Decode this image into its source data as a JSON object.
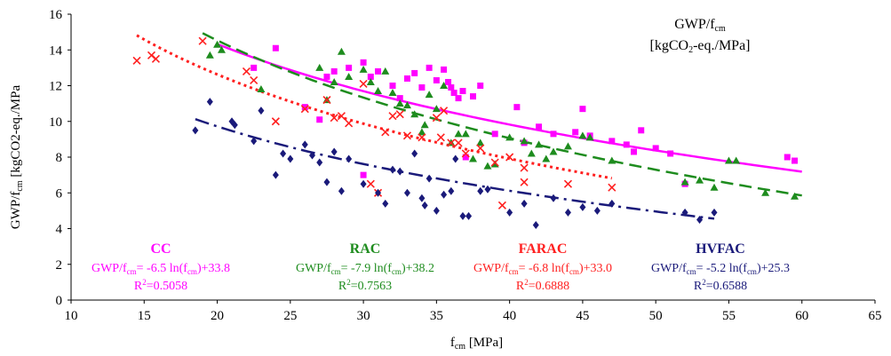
{
  "chart_data": {
    "type": "scatter",
    "title_lines": [
      "GWP/f",
      "[kgCO2-eq./MPa]"
    ],
    "title_parts": {
      "main": "GWP/f",
      "main_sub": "cm",
      "unit_a": "[kgCO",
      "unit_sub": "2",
      "unit_b": "-eq./MPa]"
    },
    "xlabel": {
      "main": "f",
      "sub": "cm",
      "unit": " [MPa]"
    },
    "ylabel": {
      "main": "GWP/f",
      "sub": "cm",
      "unit": " [kgCO2-eq./MPa"
    },
    "xlim": [
      10,
      65
    ],
    "ylim": [
      0,
      16
    ],
    "xticks": [
      "10",
      "15",
      "20",
      "25",
      "30",
      "35",
      "40",
      "45",
      "50",
      "55",
      "60",
      "65"
    ],
    "yticks": [
      "0",
      "2",
      "4",
      "6",
      "8",
      "10",
      "12",
      "14",
      "16"
    ],
    "series": [
      {
        "name": "CC",
        "color": "#ff00ff",
        "marker": "square",
        "eq_prefix": "GWP/f",
        "eq_sub": "cm",
        "eq_mid": "= -6.5 ln(f",
        "eq_sub2": "cm",
        "eq_end": ")+33.8",
        "r2": "=0.5058",
        "fit": {
          "a": -6.5,
          "b": 33.8,
          "xrange": [
            20,
            60
          ],
          "dash": "solid"
        },
        "points": [
          [
            22.5,
            13.0
          ],
          [
            24,
            14.1
          ],
          [
            26,
            10.8
          ],
          [
            27,
            10.1
          ],
          [
            27.5,
            12.5
          ],
          [
            28,
            12.8
          ],
          [
            29,
            13.0
          ],
          [
            30,
            13.3
          ],
          [
            30.5,
            12.5
          ],
          [
            31,
            12.8
          ],
          [
            32,
            12.0
          ],
          [
            32.5,
            11.3
          ],
          [
            33,
            12.4
          ],
          [
            33.5,
            12.7
          ],
          [
            34,
            11.9
          ],
          [
            34.5,
            13.0
          ],
          [
            35,
            12.3
          ],
          [
            35.5,
            12.9
          ],
          [
            35.8,
            12.2
          ],
          [
            36,
            11.9
          ],
          [
            36.2,
            11.6
          ],
          [
            36.5,
            11.3
          ],
          [
            36.8,
            11.7
          ],
          [
            37.5,
            11.4
          ],
          [
            38,
            12.0
          ],
          [
            39,
            9.3
          ],
          [
            40.5,
            10.8
          ],
          [
            41,
            8.8
          ],
          [
            42,
            9.7
          ],
          [
            43,
            9.3
          ],
          [
            44.5,
            9.4
          ],
          [
            45,
            10.7
          ],
          [
            45.5,
            9.2
          ],
          [
            47,
            8.9
          ],
          [
            48,
            8.7
          ],
          [
            48.5,
            8.3
          ],
          [
            49,
            9.5
          ],
          [
            50,
            8.5
          ],
          [
            51,
            8.2
          ],
          [
            52,
            6.5
          ],
          [
            59,
            8.0
          ],
          [
            59.5,
            7.8
          ],
          [
            30,
            7.0
          ],
          [
            37,
            8.0
          ]
        ]
      },
      {
        "name": "RAC",
        "color": "#1e8c1e",
        "marker": "triangle",
        "eq_prefix": "GWP/f",
        "eq_sub": "cm",
        "eq_mid": "= -7.9 ln(f",
        "eq_sub2": "cm",
        "eq_end": ")+38.2",
        "r2": "=0.7563",
        "fit": {
          "a": -7.9,
          "b": 38.2,
          "xrange": [
            19,
            60
          ],
          "dash": "long"
        },
        "points": [
          [
            19.5,
            13.7
          ],
          [
            20,
            14.3
          ],
          [
            20.3,
            14.0
          ],
          [
            23,
            11.8
          ],
          [
            27,
            13.0
          ],
          [
            27.5,
            11.2
          ],
          [
            28,
            12.2
          ],
          [
            28.5,
            13.9
          ],
          [
            29,
            12.5
          ],
          [
            30,
            12.9
          ],
          [
            30.5,
            12.2
          ],
          [
            31,
            11.7
          ],
          [
            31.5,
            12.8
          ],
          [
            32,
            11.6
          ],
          [
            32.5,
            11.0
          ],
          [
            33,
            10.9
          ],
          [
            33.5,
            10.4
          ],
          [
            34,
            9.4
          ],
          [
            34.2,
            9.8
          ],
          [
            34.5,
            11.5
          ],
          [
            35,
            10.7
          ],
          [
            35.5,
            12.0
          ],
          [
            36,
            8.8
          ],
          [
            36.5,
            9.3
          ],
          [
            37,
            9.3
          ],
          [
            37.5,
            7.9
          ],
          [
            38,
            8.8
          ],
          [
            38.5,
            7.5
          ],
          [
            39,
            7.6
          ],
          [
            40,
            9.1
          ],
          [
            41,
            8.9
          ],
          [
            41.5,
            8.2
          ],
          [
            42,
            8.7
          ],
          [
            42.5,
            7.9
          ],
          [
            43,
            8.3
          ],
          [
            44,
            8.6
          ],
          [
            45,
            9.2
          ],
          [
            45.5,
            9.1
          ],
          [
            47,
            7.8
          ],
          [
            52,
            6.6
          ],
          [
            53,
            6.7
          ],
          [
            54,
            6.3
          ],
          [
            55,
            7.8
          ],
          [
            55.5,
            7.8
          ],
          [
            57.5,
            6.0
          ],
          [
            59.5,
            5.8
          ]
        ]
      },
      {
        "name": "FARAC",
        "color": "#ff2020",
        "marker": "x",
        "eq_prefix": "GWP/f",
        "eq_sub": "cm",
        "eq_mid": "= -6.8 ln(f",
        "eq_sub2": "cm",
        "eq_end": ")+33.0",
        "r2": "=0.6888",
        "fit": {
          "a": -6.8,
          "b": 33.0,
          "xrange": [
            14.5,
            47
          ],
          "dash": "dotted"
        },
        "points": [
          [
            14.5,
            13.4
          ],
          [
            15.5,
            13.7
          ],
          [
            15.8,
            13.5
          ],
          [
            19,
            14.5
          ],
          [
            22,
            12.8
          ],
          [
            22.5,
            12.3
          ],
          [
            24,
            10.0
          ],
          [
            26,
            10.7
          ],
          [
            27.5,
            11.2
          ],
          [
            28,
            10.2
          ],
          [
            28.5,
            10.3
          ],
          [
            29,
            9.9
          ],
          [
            30,
            12.1
          ],
          [
            30.5,
            6.5
          ],
          [
            31,
            6.0
          ],
          [
            31.5,
            9.4
          ],
          [
            32,
            10.3
          ],
          [
            32.5,
            10.4
          ],
          [
            33,
            9.2
          ],
          [
            34,
            9.1
          ],
          [
            35,
            10.2
          ],
          [
            35.3,
            9.1
          ],
          [
            35.5,
            10.6
          ],
          [
            36,
            8.8
          ],
          [
            36.5,
            8.8
          ],
          [
            37,
            8.2
          ],
          [
            38,
            8.5
          ],
          [
            39,
            7.7
          ],
          [
            40,
            8.0
          ],
          [
            41,
            7.4
          ],
          [
            39.5,
            5.3
          ],
          [
            41,
            6.6
          ],
          [
            44,
            6.5
          ],
          [
            47,
            6.3
          ]
        ]
      },
      {
        "name": "HVFAC",
        "color": "#1a1a7a",
        "marker": "diamond",
        "eq_prefix": "GWP/f",
        "eq_sub": "cm",
        "eq_mid": "= -5.2 ln(f",
        "eq_sub2": "cm",
        "eq_end": ")+25.3",
        "r2": "=0.6588",
        "fit": {
          "a": -5.2,
          "b": 25.3,
          "xrange": [
            18.5,
            54
          ],
          "dash": "dashdot"
        },
        "points": [
          [
            18.5,
            9.5
          ],
          [
            19.5,
            11.1
          ],
          [
            21,
            10.0
          ],
          [
            21.2,
            9.8
          ],
          [
            22.5,
            8.9
          ],
          [
            23,
            10.6
          ],
          [
            24,
            7.0
          ],
          [
            24.5,
            8.2
          ],
          [
            25,
            7.9
          ],
          [
            26,
            8.7
          ],
          [
            26.5,
            8.1
          ],
          [
            27,
            7.7
          ],
          [
            27.5,
            6.6
          ],
          [
            28,
            8.3
          ],
          [
            28.5,
            6.1
          ],
          [
            29,
            7.9
          ],
          [
            30,
            6.5
          ],
          [
            31,
            6.0
          ],
          [
            31.5,
            5.4
          ],
          [
            32,
            7.3
          ],
          [
            32.5,
            7.2
          ],
          [
            33,
            6.0
          ],
          [
            33.5,
            8.2
          ],
          [
            34,
            5.7
          ],
          [
            34.2,
            5.3
          ],
          [
            34.5,
            6.8
          ],
          [
            35,
            5.0
          ],
          [
            35.5,
            5.9
          ],
          [
            36,
            6.1
          ],
          [
            36.3,
            7.9
          ],
          [
            36.8,
            4.7
          ],
          [
            37.2,
            4.7
          ],
          [
            38,
            6.1
          ],
          [
            38.5,
            6.2
          ],
          [
            40,
            4.9
          ],
          [
            41,
            5.4
          ],
          [
            41.8,
            4.2
          ],
          [
            43,
            5.7
          ],
          [
            44,
            4.9
          ],
          [
            45,
            5.2
          ],
          [
            46,
            5.0
          ],
          [
            47,
            5.4
          ],
          [
            52,
            4.9
          ],
          [
            53,
            4.5
          ],
          [
            54,
            4.9
          ]
        ]
      }
    ],
    "grid": false,
    "legend_placement": "bottom"
  }
}
